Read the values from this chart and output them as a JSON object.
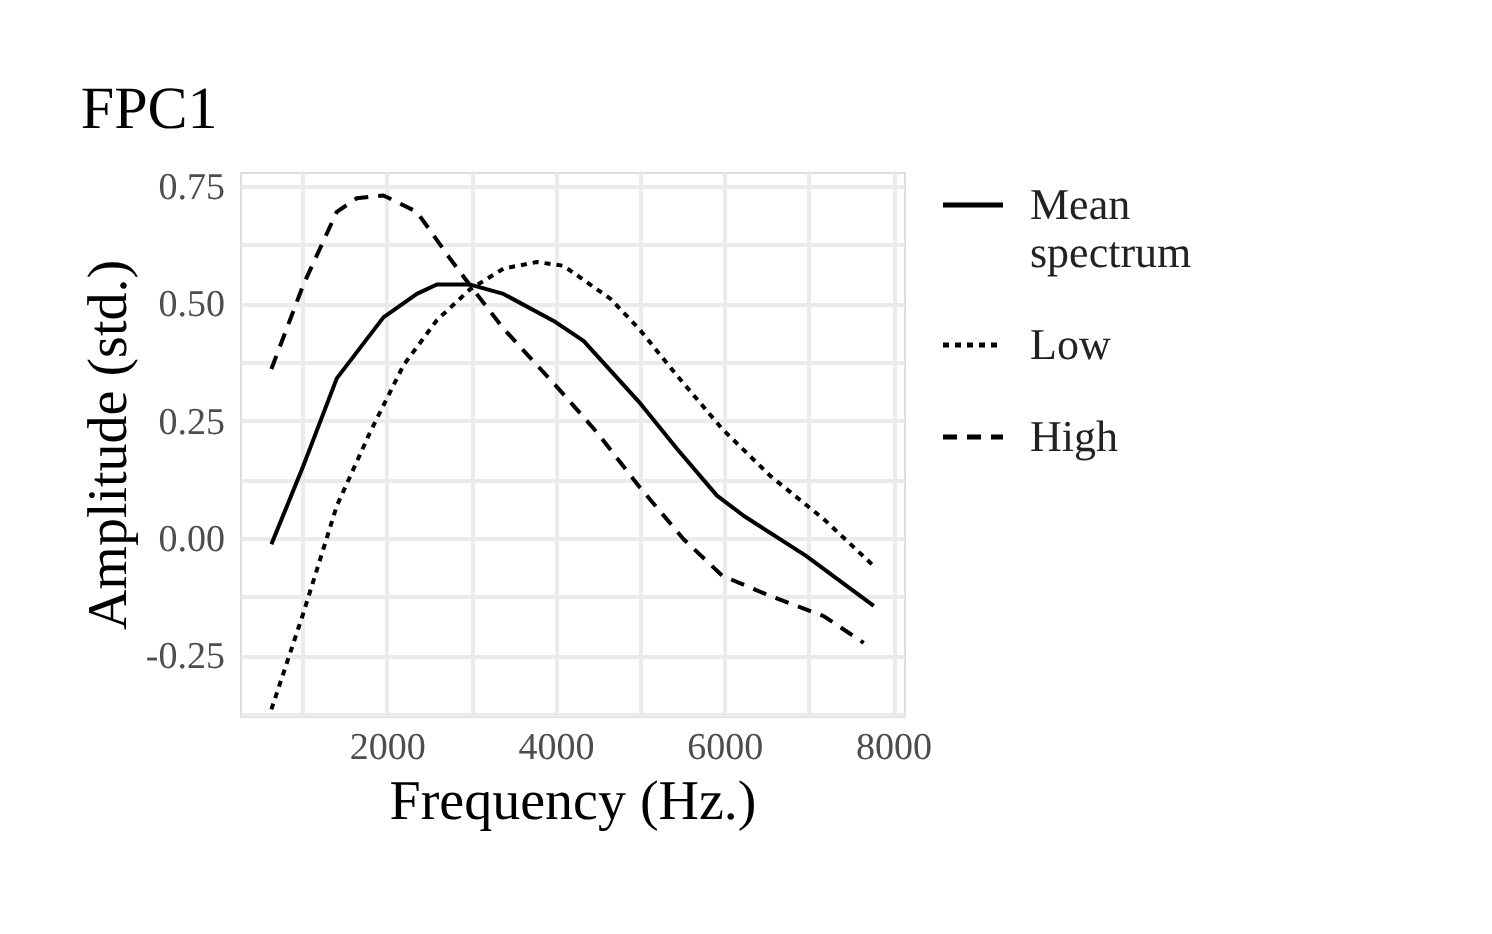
{
  "chart_data": {
    "type": "line",
    "title": "FPC1",
    "xlabel": "Frequency (Hz.)",
    "ylabel": "Amplitude (std.)",
    "xlim": [
      260,
      8130
    ],
    "ylim": [
      -0.38,
      0.78
    ],
    "xticks": [
      {
        "value": 1000,
        "label": null
      },
      2000,
      {
        "value": 3000,
        "label": null
      },
      4000,
      {
        "value": 5000,
        "label": null
      },
      6000,
      {
        "value": 7000,
        "label": null
      },
      8000
    ],
    "yticks": [
      {
        "value": -0.375,
        "label": null
      },
      {
        "value": -0.25,
        "label": "-0.25"
      },
      {
        "value": -0.125,
        "label": null
      },
      {
        "value": 0,
        "label": "0.00"
      },
      {
        "value": 0.125,
        "label": null
      },
      {
        "value": 0.25,
        "label": "0.25"
      },
      {
        "value": 0.375,
        "label": null
      },
      {
        "value": 0.5,
        "label": "0.50"
      },
      {
        "value": 0.625,
        "label": null
      },
      {
        "value": 0.75,
        "label": "0.75"
      }
    ],
    "grid": true,
    "legend": "right",
    "marker": "none",
    "series": [
      {
        "name": "Mean spectrum",
        "color": "#000000",
        "line_style": "solid",
        "x": [
          632,
          1012,
          1407,
          1960,
          2356,
          2593,
          2988,
          3383,
          4000,
          4332,
          4988,
          5439,
          5913,
          6229,
          6965,
          7771
        ],
        "values": [
          -0.014,
          0.154,
          0.34,
          0.47,
          0.52,
          0.54,
          0.54,
          0.52,
          0.46,
          0.42,
          0.29,
          0.19,
          0.09,
          0.047,
          -0.038,
          -0.145
        ]
      },
      {
        "name": "Low",
        "color": "#000000",
        "line_style": "dotted",
        "x": [
          632,
          1012,
          1407,
          1802,
          2198,
          2593,
          2988,
          3383,
          3779,
          4095,
          4648,
          4988,
          5439,
          5976,
          6545,
          7178,
          7771
        ],
        "values": [
          -0.366,
          -0.16,
          0.068,
          0.225,
          0.368,
          0.464,
          0.53,
          0.574,
          0.588,
          0.58,
          0.51,
          0.446,
          0.346,
          0.232,
          0.132,
          0.04,
          -0.06
        ]
      },
      {
        "name": "High",
        "color": "#000000",
        "line_style": "dashed",
        "x": [
          632,
          1012,
          1407,
          1644,
          1960,
          2356,
          2751,
          2988,
          3383,
          4000,
          4490,
          4988,
          5518,
          5976,
          6545,
          7178,
          7652
        ],
        "values": [
          0.36,
          0.54,
          0.695,
          0.724,
          0.73,
          0.695,
          0.595,
          0.538,
          0.446,
          0.325,
          0.225,
          0.11,
          -0.003,
          -0.081,
          -0.124,
          -0.167,
          -0.224
        ]
      }
    ]
  }
}
